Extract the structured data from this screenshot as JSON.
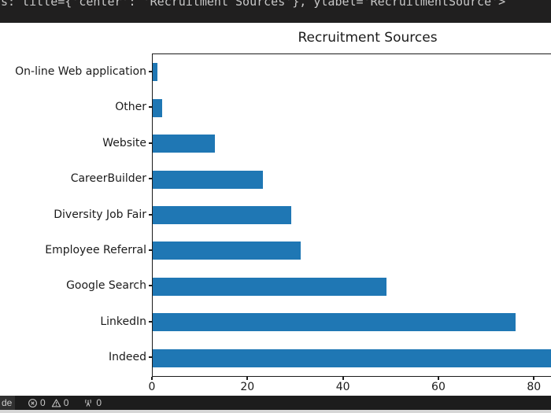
{
  "editor": {
    "output_line": "s: title={'center': 'Recruitment Sources'}, ylabel='RecruitmentSource'>"
  },
  "chart_data": {
    "type": "bar",
    "orientation": "horizontal",
    "title": "Recruitment Sources",
    "categories": [
      "On-line Web application",
      "Other",
      "Website",
      "CareerBuilder",
      "Diversity Job Fair",
      "Employee Referral",
      "Google Search",
      "LinkedIn",
      "Indeed"
    ],
    "values": [
      1,
      2,
      13,
      23,
      29,
      31,
      49,
      76,
      87
    ],
    "xlabel": "",
    "ylabel": "",
    "xticks": [
      0,
      20,
      40,
      60,
      80
    ],
    "xlim": [
      0,
      91
    ],
    "grid": false,
    "legend": "none",
    "bar_color": "#1f77b4",
    "background": "#ffffff",
    "note_right_edge": "figure clipped at right window edge"
  },
  "status_bar": {
    "remote_label": "de",
    "items": [
      {
        "icon": "error-icon",
        "count": "0"
      },
      {
        "icon": "warning-icon",
        "count": "0"
      },
      {
        "icon": "radio-tower-icon",
        "count": "0"
      }
    ]
  }
}
